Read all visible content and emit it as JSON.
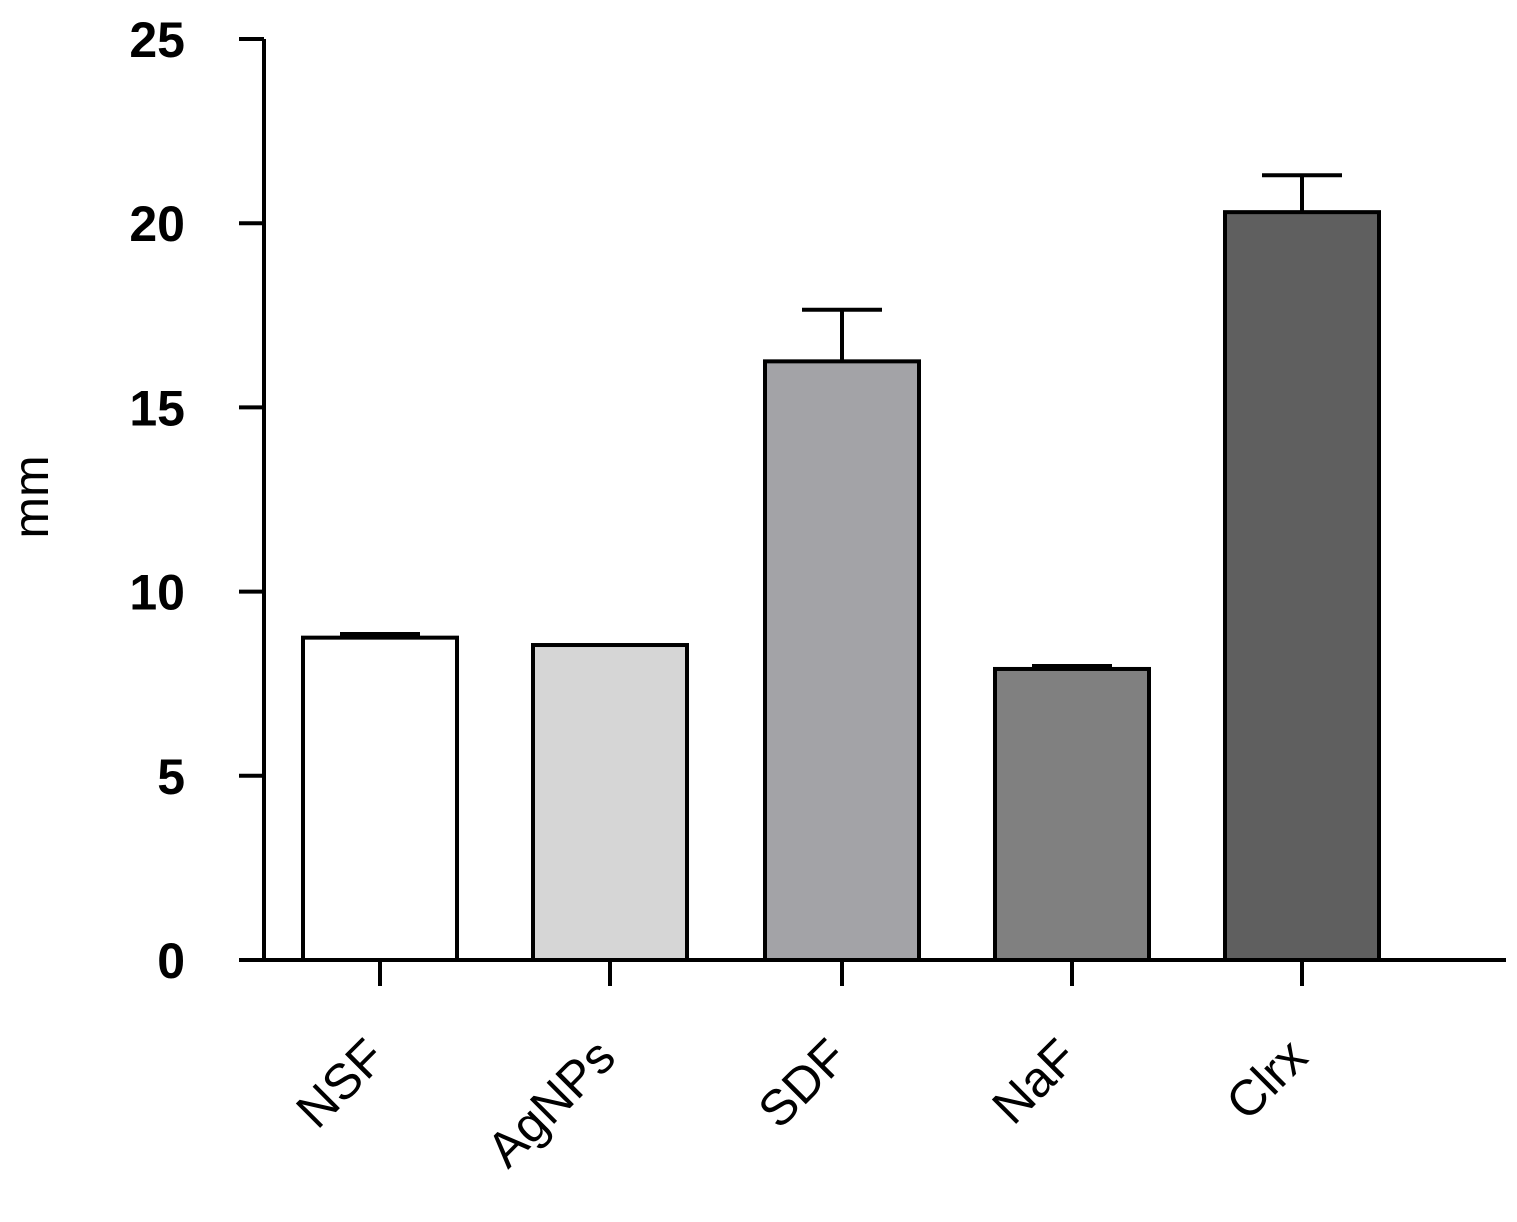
{
  "chart_data": {
    "type": "bar",
    "title": "",
    "xlabel": "",
    "ylabel": "mm",
    "ylim": [
      0,
      25
    ],
    "yticks": [
      0,
      5,
      10,
      15,
      20,
      25
    ],
    "ytick_labels": [
      "0",
      "5",
      "10",
      "15",
      "20",
      "25"
    ],
    "categories": [
      "NSF",
      "AgNPs",
      "SDF",
      "NaF",
      "Clrx"
    ],
    "values": [
      8.75,
      8.55,
      16.25,
      7.9,
      20.3
    ],
    "errors": [
      0.1,
      0.0,
      1.4,
      0.08,
      1.0
    ],
    "colors": [
      "#ffffff",
      "#d6d6d6",
      "#a3a3a7",
      "#808080",
      "#5f5f5f"
    ],
    "grid": false,
    "legend": "none"
  }
}
